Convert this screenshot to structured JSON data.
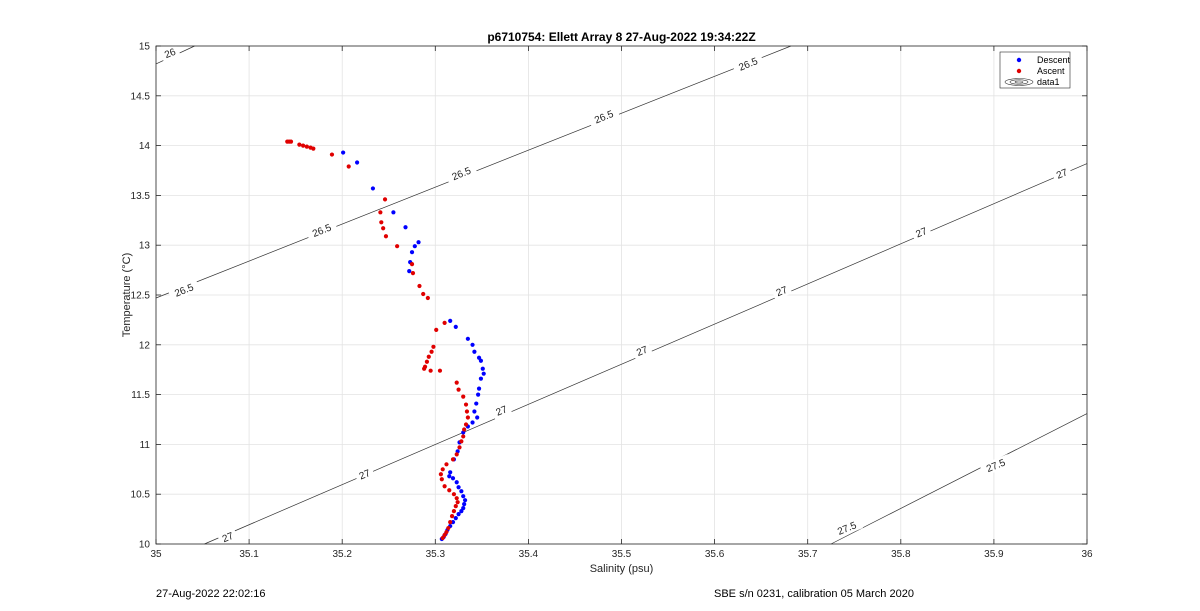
{
  "chart_data": {
    "type": "scatter",
    "title": "p6710754: Ellett Array 8 27-Aug-2022 19:34:22Z",
    "xlabel": "Salinity (psu)",
    "ylabel": "Temperature (°C)",
    "xlim": [
      35,
      36
    ],
    "ylim": [
      10,
      15
    ],
    "xticks": [
      "35",
      "35.1",
      "35.2",
      "35.3",
      "35.4",
      "35.5",
      "35.6",
      "35.7",
      "35.8",
      "35.9",
      "36"
    ],
    "yticks": [
      "10",
      "10.5",
      "11",
      "11.5",
      "12",
      "12.5",
      "13",
      "13.5",
      "14",
      "14.5",
      "15"
    ],
    "grid": true,
    "legend_position": "top-right",
    "legend": [
      "Descent",
      "Ascent",
      "data1"
    ],
    "series": [
      {
        "name": "Descent",
        "color": "#0000ff",
        "points": [
          [
            35.201,
            13.93
          ],
          [
            35.216,
            13.83
          ],
          [
            35.233,
            13.57
          ],
          [
            35.255,
            13.33
          ],
          [
            35.268,
            13.18
          ],
          [
            35.282,
            13.03
          ],
          [
            35.278,
            12.99
          ],
          [
            35.275,
            12.93
          ],
          [
            35.273,
            12.83
          ],
          [
            35.272,
            12.74
          ],
          [
            35.316,
            12.24
          ],
          [
            35.322,
            12.18
          ],
          [
            35.335,
            12.06
          ],
          [
            35.34,
            12.0
          ],
          [
            35.342,
            11.93
          ],
          [
            35.347,
            11.87
          ],
          [
            35.349,
            11.84
          ],
          [
            35.351,
            11.76
          ],
          [
            35.352,
            11.71
          ],
          [
            35.349,
            11.66
          ],
          [
            35.347,
            11.56
          ],
          [
            35.346,
            11.5
          ],
          [
            35.344,
            11.41
          ],
          [
            35.342,
            11.33
          ],
          [
            35.345,
            11.27
          ],
          [
            35.34,
            11.22
          ],
          [
            35.335,
            11.18
          ],
          [
            35.33,
            11.12
          ],
          [
            35.326,
            11.02
          ],
          [
            35.324,
            10.93
          ],
          [
            35.32,
            10.85
          ],
          [
            35.316,
            10.72
          ],
          [
            35.315,
            10.68
          ],
          [
            35.319,
            10.66
          ],
          [
            35.323,
            10.62
          ],
          [
            35.325,
            10.57
          ],
          [
            35.328,
            10.53
          ],
          [
            35.33,
            10.48
          ],
          [
            35.332,
            10.44
          ],
          [
            35.331,
            10.4
          ],
          [
            35.33,
            10.36
          ],
          [
            35.328,
            10.33
          ],
          [
            35.325,
            10.3
          ],
          [
            35.322,
            10.26
          ],
          [
            35.319,
            10.22
          ],
          [
            35.316,
            10.18
          ],
          [
            35.313,
            10.14
          ],
          [
            35.311,
            10.1
          ],
          [
            35.309,
            10.07
          ],
          [
            35.307,
            10.05
          ]
        ]
      },
      {
        "name": "Ascent",
        "color": "#e00000",
        "points": [
          [
            35.141,
            14.04
          ],
          [
            35.143,
            14.04
          ],
          [
            35.145,
            14.04
          ],
          [
            35.154,
            14.01
          ],
          [
            35.158,
            14.0
          ],
          [
            35.162,
            13.99
          ],
          [
            35.166,
            13.98
          ],
          [
            35.169,
            13.97
          ],
          [
            35.189,
            13.91
          ],
          [
            35.207,
            13.79
          ],
          [
            35.246,
            13.46
          ],
          [
            35.241,
            13.33
          ],
          [
            35.242,
            13.23
          ],
          [
            35.244,
            13.17
          ],
          [
            35.247,
            13.09
          ],
          [
            35.259,
            12.99
          ],
          [
            35.275,
            12.81
          ],
          [
            35.276,
            12.72
          ],
          [
            35.283,
            12.59
          ],
          [
            35.287,
            12.51
          ],
          [
            35.292,
            12.47
          ],
          [
            35.31,
            12.22
          ],
          [
            35.301,
            12.15
          ],
          [
            35.298,
            11.98
          ],
          [
            35.296,
            11.93
          ],
          [
            35.293,
            11.88
          ],
          [
            35.291,
            11.83
          ],
          [
            35.289,
            11.78
          ],
          [
            35.288,
            11.76
          ],
          [
            35.295,
            11.74
          ],
          [
            35.305,
            11.74
          ],
          [
            35.323,
            11.62
          ],
          [
            35.325,
            11.55
          ],
          [
            35.33,
            11.48
          ],
          [
            35.333,
            11.4
          ],
          [
            35.334,
            11.33
          ],
          [
            35.335,
            11.27
          ],
          [
            35.333,
            11.2
          ],
          [
            35.331,
            11.15
          ],
          [
            35.33,
            11.08
          ],
          [
            35.328,
            11.03
          ],
          [
            35.326,
            10.97
          ],
          [
            35.323,
            10.9
          ],
          [
            35.319,
            10.85
          ],
          [
            35.312,
            10.8
          ],
          [
            35.308,
            10.75
          ],
          [
            35.306,
            10.7
          ],
          [
            35.307,
            10.65
          ],
          [
            35.31,
            10.58
          ],
          [
            35.315,
            10.54
          ],
          [
            35.32,
            10.5
          ],
          [
            35.323,
            10.46
          ],
          [
            35.324,
            10.42
          ],
          [
            35.322,
            10.38
          ],
          [
            35.32,
            10.33
          ],
          [
            35.318,
            10.28
          ],
          [
            35.316,
            10.22
          ],
          [
            35.314,
            10.16
          ],
          [
            35.312,
            10.12
          ],
          [
            35.31,
            10.09
          ],
          [
            35.308,
            10.06
          ]
        ]
      }
    ],
    "contour_lines": [
      {
        "label": "26",
        "endpoints": [
          [
            35.0,
            14.82
          ],
          [
            35.0415,
            15.0
          ]
        ]
      },
      {
        "label": "26.5",
        "endpoints": [
          [
            35.0,
            12.47
          ],
          [
            35.682,
            15.0
          ]
        ]
      },
      {
        "label": "27",
        "endpoints": [
          [
            35.052,
            10.0
          ],
          [
            36.0,
            13.82
          ]
        ]
      },
      {
        "label": "27.5",
        "endpoints": [
          [
            35.725,
            10.0
          ],
          [
            36.0,
            11.31
          ]
        ]
      }
    ],
    "contour_label_positions": [
      {
        "label": "26",
        "at": [
          35.015,
          14.93
        ],
        "angle": -22
      },
      {
        "label": "26.5",
        "at": [
          35.03,
          12.55
        ],
        "angle": -22
      },
      {
        "label": "26.5",
        "at": [
          35.178,
          13.15
        ],
        "angle": -22
      },
      {
        "label": "26.5",
        "at": [
          35.328,
          13.72
        ],
        "angle": -22
      },
      {
        "label": "26.5",
        "at": [
          35.481,
          14.29
        ],
        "angle": -22
      },
      {
        "label": "26.5",
        "at": [
          35.636,
          14.82
        ],
        "angle": -22
      },
      {
        "label": "27",
        "at": [
          35.077,
          10.07
        ],
        "angle": -22
      },
      {
        "label": "27",
        "at": [
          35.224,
          10.7
        ],
        "angle": -22
      },
      {
        "label": "27",
        "at": [
          35.371,
          11.34
        ],
        "angle": -22
      },
      {
        "label": "27",
        "at": [
          35.522,
          11.94
        ],
        "angle": -22
      },
      {
        "label": "27",
        "at": [
          35.672,
          12.54
        ],
        "angle": -22
      },
      {
        "label": "27",
        "at": [
          35.822,
          13.13
        ],
        "angle": -22
      },
      {
        "label": "27",
        "at": [
          35.973,
          13.72
        ],
        "angle": -22
      },
      {
        "label": "27.5",
        "at": [
          35.742,
          10.16
        ],
        "angle": -22
      },
      {
        "label": "27.5",
        "at": [
          35.902,
          10.79
        ],
        "angle": -22
      }
    ]
  },
  "footer": {
    "timestamp": "27-Aug-2022 22:02:16",
    "instrument": "SBE s/n 0231, calibration 05 March 2020"
  }
}
